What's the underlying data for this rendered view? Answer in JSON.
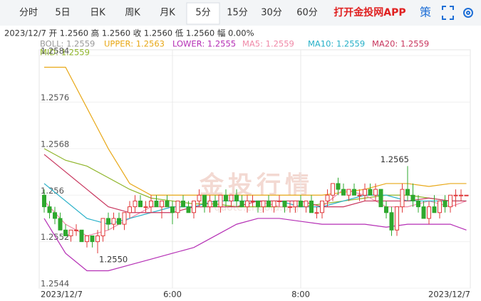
{
  "tabs": [
    "分时",
    "5日",
    "日K",
    "周K",
    "月K",
    "5分",
    "15分",
    "30分",
    "60分"
  ],
  "active_tab": 5,
  "app_link": "打开金投网APP",
  "strategy": "策",
  "info_line": "2023/12/7 开 1.2560 高 1.2560 收 1.2560 低 1.2560 幅 0.00%",
  "chart_data": {
    "type": "candlestick",
    "indicators": [
      {
        "label": "BOLL: 1.2559",
        "color": "#9a9a9a"
      },
      {
        "label": "UPPER: 1.2563",
        "color": "#e8a817"
      },
      {
        "label": "LOWER: 1.2555",
        "color": "#b52fb5"
      },
      {
        "label": "MA5: 1.2559",
        "color": "#f08aa8"
      },
      {
        "label": "MA10: 1.2559",
        "color": "#26b0c8"
      },
      {
        "label": "MA20: 1.2559",
        "color": "#c8365e"
      }
    ],
    "mid_label": {
      "label": "MID: 1.2559",
      "color": "#8fb52a"
    },
    "watermark": "金投行情",
    "watermark_url": "quote.cngold.org",
    "up_color": "#e0393a",
    "down_color": "#2ea82e",
    "ylim": [
      1.2544,
      1.2585
    ],
    "yticks": [
      1.2584,
      1.2576,
      1.2568,
      1.256,
      1.2552,
      1.2544
    ],
    "grid": true,
    "categories": [
      "2023/12/7",
      null,
      null,
      null,
      null,
      null,
      null,
      null,
      null,
      null,
      null,
      null,
      null,
      null,
      null,
      null,
      null,
      null,
      null,
      null,
      null,
      null,
      null,
      null,
      "6:00",
      null,
      null,
      null,
      null,
      null,
      null,
      null,
      null,
      null,
      null,
      null,
      null,
      null,
      null,
      null,
      null,
      null,
      null,
      null,
      null,
      null,
      null,
      null,
      "8:00",
      null,
      null,
      null,
      null,
      null,
      null,
      null,
      null,
      null,
      null,
      null,
      null,
      null,
      null,
      null,
      null,
      null,
      null,
      null,
      null,
      null,
      null,
      null,
      null,
      null,
      null,
      null,
      null,
      null,
      "2023/12/7"
    ],
    "candles": [
      [
        1.256,
        1.2561,
        1.2557,
        1.2558
      ],
      [
        1.2558,
        1.2559,
        1.2556,
        1.2557
      ],
      [
        1.2557,
        1.2558,
        1.2555,
        1.2556
      ],
      [
        1.2556,
        1.2557,
        1.2554,
        1.2554
      ],
      [
        1.2554,
        1.2555,
        1.2553,
        1.2553
      ],
      [
        1.2553,
        1.2554,
        1.2552,
        1.2554
      ],
      [
        1.2554,
        1.2555,
        1.2553,
        1.2554
      ],
      [
        1.2554,
        1.2554,
        1.2552,
        1.2552
      ],
      [
        1.2552,
        1.2553,
        1.2551,
        1.2553
      ],
      [
        1.2553,
        1.2553,
        1.2551,
        1.2552
      ],
      [
        1.2552,
        1.2554,
        1.255,
        1.2553
      ],
      [
        1.2553,
        1.2556,
        1.2552,
        1.2556
      ],
      [
        1.2556,
        1.2557,
        1.2554,
        1.2555
      ],
      [
        1.2555,
        1.2557,
        1.2554,
        1.2556
      ],
      [
        1.2556,
        1.2557,
        1.2555,
        1.2555
      ],
      [
        1.2555,
        1.2557,
        1.2554,
        1.2557
      ],
      [
        1.2557,
        1.2559,
        1.2556,
        1.2558
      ],
      [
        1.2558,
        1.256,
        1.2557,
        1.2559
      ],
      [
        1.2559,
        1.256,
        1.2558,
        1.2558
      ],
      [
        1.2558,
        1.2559,
        1.2557,
        1.2558
      ],
      [
        1.2558,
        1.256,
        1.2557,
        1.2559
      ],
      [
        1.2559,
        1.256,
        1.2558,
        1.2558
      ],
      [
        1.2558,
        1.2559,
        1.2556,
        1.2559
      ],
      [
        1.2559,
        1.256,
        1.2558,
        1.2558
      ],
      [
        1.2558,
        1.2559,
        1.2555,
        1.2557
      ],
      [
        1.2557,
        1.2559,
        1.2556,
        1.2559
      ],
      [
        1.2559,
        1.256,
        1.2558,
        1.2558
      ],
      [
        1.2558,
        1.2559,
        1.2557,
        1.2557
      ],
      [
        1.2557,
        1.2559,
        1.2556,
        1.2559
      ],
      [
        1.2559,
        1.2561,
        1.2558,
        1.256
      ],
      [
        1.256,
        1.256,
        1.2557,
        1.2558
      ],
      [
        1.2558,
        1.256,
        1.2557,
        1.2559
      ],
      [
        1.2559,
        1.256,
        1.2558,
        1.2558
      ],
      [
        1.2558,
        1.256,
        1.2557,
        1.256
      ],
      [
        1.256,
        1.2561,
        1.2558,
        1.2559
      ],
      [
        1.2559,
        1.256,
        1.2558,
        1.256
      ],
      [
        1.256,
        1.2561,
        1.2558,
        1.2559
      ],
      [
        1.2559,
        1.256,
        1.2558,
        1.2558
      ],
      [
        1.2558,
        1.256,
        1.2557,
        1.2559
      ],
      [
        1.2559,
        1.256,
        1.2558,
        1.2559
      ],
      [
        1.2559,
        1.2559,
        1.2557,
        1.2558
      ],
      [
        1.2558,
        1.2559,
        1.2557,
        1.2559
      ],
      [
        1.2559,
        1.256,
        1.2558,
        1.2558
      ],
      [
        1.2558,
        1.2559,
        1.2557,
        1.2559
      ],
      [
        1.2559,
        1.256,
        1.2558,
        1.2559
      ],
      [
        1.2559,
        1.2559,
        1.2557,
        1.2558
      ],
      [
        1.2558,
        1.2559,
        1.2557,
        1.2558
      ],
      [
        1.2558,
        1.2559,
        1.2557,
        1.2559
      ],
      [
        1.2559,
        1.256,
        1.2558,
        1.2558
      ],
      [
        1.2558,
        1.2559,
        1.2557,
        1.2559
      ],
      [
        1.2559,
        1.256,
        1.2557,
        1.2557
      ],
      [
        1.2557,
        1.2558,
        1.2556,
        1.2557
      ],
      [
        1.2557,
        1.2559,
        1.2556,
        1.2559
      ],
      [
        1.2559,
        1.2561,
        1.2558,
        1.256
      ],
      [
        1.256,
        1.2562,
        1.2559,
        1.2562
      ],
      [
        1.2562,
        1.2563,
        1.256,
        1.2561
      ],
      [
        1.2561,
        1.2562,
        1.256,
        1.256
      ],
      [
        1.256,
        1.2561,
        1.2559,
        1.2561
      ],
      [
        1.2561,
        1.2562,
        1.256,
        1.256
      ],
      [
        1.256,
        1.2561,
        1.2559,
        1.256
      ],
      [
        1.256,
        1.2562,
        1.2559,
        1.2561
      ],
      [
        1.2561,
        1.2562,
        1.256,
        1.256
      ],
      [
        1.256,
        1.2562,
        1.2559,
        1.2561
      ],
      [
        1.2561,
        1.2561,
        1.2558,
        1.2558
      ],
      [
        1.2558,
        1.2559,
        1.2556,
        1.2557
      ],
      [
        1.2557,
        1.2558,
        1.2553,
        1.2554
      ],
      [
        1.2554,
        1.2558,
        1.2553,
        1.2558
      ],
      [
        1.2558,
        1.2562,
        1.2557,
        1.2561
      ],
      [
        1.2561,
        1.2565,
        1.2559,
        1.256
      ],
      [
        1.256,
        1.2562,
        1.2558,
        1.2559
      ],
      [
        1.2559,
        1.256,
        1.2557,
        1.2558
      ],
      [
        1.2558,
        1.2559,
        1.2556,
        1.2556
      ],
      [
        1.2556,
        1.2559,
        1.2555,
        1.2558
      ],
      [
        1.2558,
        1.256,
        1.2557,
        1.2557
      ],
      [
        1.2557,
        1.2559,
        1.2556,
        1.2559
      ],
      [
        1.2559,
        1.256,
        1.2557,
        1.2558
      ],
      [
        1.2558,
        1.256,
        1.2557,
        1.256
      ],
      [
        1.256,
        1.2561,
        1.2558,
        1.256
      ],
      [
        1.256,
        1.2561,
        1.2559,
        1.256
      ],
      [
        1.256,
        1.256,
        1.256,
        1.256
      ]
    ],
    "high_label": "1.2565",
    "low_label": "1.2550",
    "line_x": [
      0,
      4,
      8,
      12,
      16,
      20,
      24,
      28,
      32,
      36,
      40,
      44,
      48,
      52,
      56,
      60,
      64,
      68,
      72,
      76,
      79
    ],
    "lines": [
      {
        "color": "#e8a817",
        "values": [
          1.2582,
          1.2582,
          1.2575,
          1.2568,
          1.2562,
          1.256,
          1.256,
          1.256,
          1.256,
          1.256,
          1.256,
          1.256,
          1.256,
          1.256,
          1.25605,
          1.2561,
          1.2562,
          1.2562,
          1.25615,
          1.2562,
          1.2562
        ]
      },
      {
        "color": "#8fb52a",
        "values": [
          1.2568,
          1.2566,
          1.2565,
          1.2563,
          1.2561,
          1.25595,
          1.2559,
          1.25585,
          1.25585,
          1.2558,
          1.2558,
          1.2558,
          1.2558,
          1.25585,
          1.2559,
          1.25595,
          1.256,
          1.256,
          1.25595,
          1.2559,
          1.2559
        ]
      },
      {
        "color": "#b52fb5",
        "values": [
          1.2556,
          1.255,
          1.2547,
          1.2547,
          1.2548,
          1.2549,
          1.255,
          1.2551,
          1.2553,
          1.2555,
          1.2556,
          1.2556,
          1.25555,
          1.2555,
          1.2555,
          1.2555,
          1.25545,
          1.2555,
          1.2555,
          1.2555,
          1.2554
        ]
      },
      {
        "color": "#f08aa8",
        "values": [
          1.2559,
          1.2555,
          1.2553,
          1.2554,
          1.2556,
          1.2558,
          1.2558,
          1.2558,
          1.2559,
          1.2559,
          1.2559,
          1.2558,
          1.2558,
          1.2558,
          1.2561,
          1.256,
          1.2558,
          1.2558,
          1.2559,
          1.2558,
          1.2559
        ]
      },
      {
        "color": "#26b0c8",
        "values": [
          1.2562,
          1.2559,
          1.2556,
          1.2555,
          1.2556,
          1.2557,
          1.2558,
          1.2558,
          1.2559,
          1.2559,
          1.2559,
          1.2559,
          1.2558,
          1.2558,
          1.2559,
          1.256,
          1.256,
          1.2559,
          1.2559,
          1.2559,
          1.2559
        ]
      },
      {
        "color": "#c8365e",
        "values": [
          1.2567,
          1.2564,
          1.2561,
          1.2558,
          1.2557,
          1.2557,
          1.2557,
          1.2558,
          1.2558,
          1.2558,
          1.2559,
          1.2559,
          1.2559,
          1.2558,
          1.2558,
          1.2559,
          1.2559,
          1.2559,
          1.25595,
          1.2559,
          1.2559
        ]
      }
    ]
  }
}
